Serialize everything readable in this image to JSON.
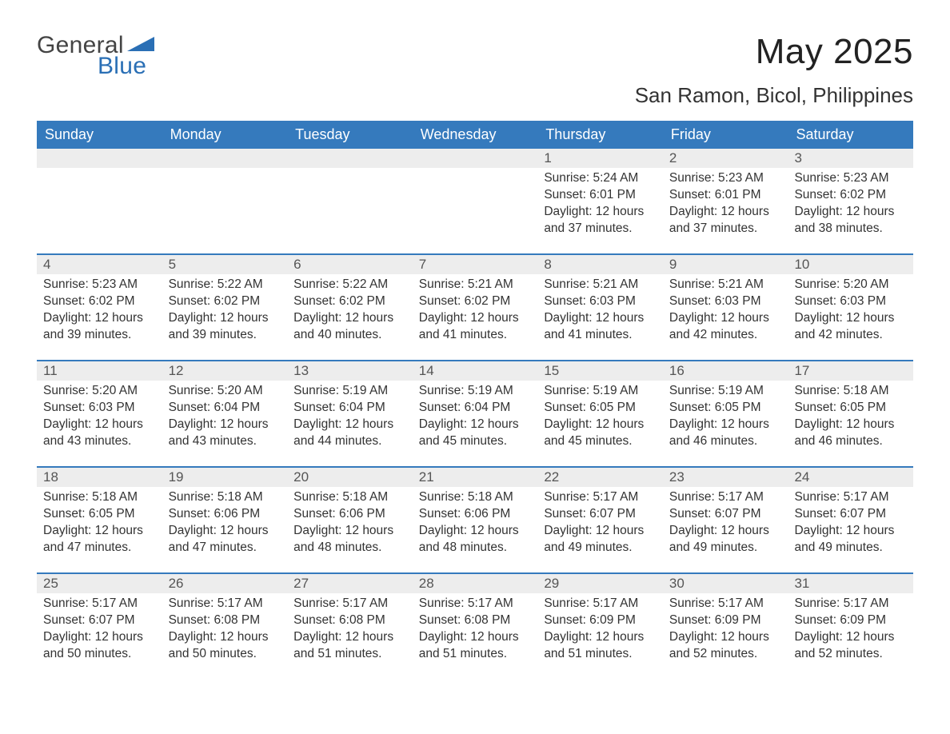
{
  "logo": {
    "word1": "General",
    "word2": "Blue",
    "word1_color": "#444444",
    "word2_color": "#2a6fb5"
  },
  "title": "May 2025",
  "location": "San Ramon, Bicol, Philippines",
  "colors": {
    "header_bg": "#357abd",
    "header_text": "#ffffff",
    "daynum_bg": "#ededed",
    "daynum_text": "#555555",
    "row_divider": "#357abd",
    "body_text": "#333333",
    "background": "#ffffff"
  },
  "typography": {
    "title_fontsize": 44,
    "location_fontsize": 26,
    "header_fontsize": 18,
    "daynum_fontsize": 17,
    "body_fontsize": 15.5,
    "font_family": "Arial"
  },
  "layout": {
    "columns": 7,
    "rows": 5,
    "cell_min_height": 131
  },
  "weekdays": [
    "Sunday",
    "Monday",
    "Tuesday",
    "Wednesday",
    "Thursday",
    "Friday",
    "Saturday"
  ],
  "weeks": [
    [
      null,
      null,
      null,
      null,
      {
        "day": "1",
        "sunrise": "5:24 AM",
        "sunset": "6:01 PM",
        "daylight": "12 hours and 37 minutes."
      },
      {
        "day": "2",
        "sunrise": "5:23 AM",
        "sunset": "6:01 PM",
        "daylight": "12 hours and 37 minutes."
      },
      {
        "day": "3",
        "sunrise": "5:23 AM",
        "sunset": "6:02 PM",
        "daylight": "12 hours and 38 minutes."
      }
    ],
    [
      {
        "day": "4",
        "sunrise": "5:23 AM",
        "sunset": "6:02 PM",
        "daylight": "12 hours and 39 minutes."
      },
      {
        "day": "5",
        "sunrise": "5:22 AM",
        "sunset": "6:02 PM",
        "daylight": "12 hours and 39 minutes."
      },
      {
        "day": "6",
        "sunrise": "5:22 AM",
        "sunset": "6:02 PM",
        "daylight": "12 hours and 40 minutes."
      },
      {
        "day": "7",
        "sunrise": "5:21 AM",
        "sunset": "6:02 PM",
        "daylight": "12 hours and 41 minutes."
      },
      {
        "day": "8",
        "sunrise": "5:21 AM",
        "sunset": "6:03 PM",
        "daylight": "12 hours and 41 minutes."
      },
      {
        "day": "9",
        "sunrise": "5:21 AM",
        "sunset": "6:03 PM",
        "daylight": "12 hours and 42 minutes."
      },
      {
        "day": "10",
        "sunrise": "5:20 AM",
        "sunset": "6:03 PM",
        "daylight": "12 hours and 42 minutes."
      }
    ],
    [
      {
        "day": "11",
        "sunrise": "5:20 AM",
        "sunset": "6:03 PM",
        "daylight": "12 hours and 43 minutes."
      },
      {
        "day": "12",
        "sunrise": "5:20 AM",
        "sunset": "6:04 PM",
        "daylight": "12 hours and 43 minutes."
      },
      {
        "day": "13",
        "sunrise": "5:19 AM",
        "sunset": "6:04 PM",
        "daylight": "12 hours and 44 minutes."
      },
      {
        "day": "14",
        "sunrise": "5:19 AM",
        "sunset": "6:04 PM",
        "daylight": "12 hours and 45 minutes."
      },
      {
        "day": "15",
        "sunrise": "5:19 AM",
        "sunset": "6:05 PM",
        "daylight": "12 hours and 45 minutes."
      },
      {
        "day": "16",
        "sunrise": "5:19 AM",
        "sunset": "6:05 PM",
        "daylight": "12 hours and 46 minutes."
      },
      {
        "day": "17",
        "sunrise": "5:18 AM",
        "sunset": "6:05 PM",
        "daylight": "12 hours and 46 minutes."
      }
    ],
    [
      {
        "day": "18",
        "sunrise": "5:18 AM",
        "sunset": "6:05 PM",
        "daylight": "12 hours and 47 minutes."
      },
      {
        "day": "19",
        "sunrise": "5:18 AM",
        "sunset": "6:06 PM",
        "daylight": "12 hours and 47 minutes."
      },
      {
        "day": "20",
        "sunrise": "5:18 AM",
        "sunset": "6:06 PM",
        "daylight": "12 hours and 48 minutes."
      },
      {
        "day": "21",
        "sunrise": "5:18 AM",
        "sunset": "6:06 PM",
        "daylight": "12 hours and 48 minutes."
      },
      {
        "day": "22",
        "sunrise": "5:17 AM",
        "sunset": "6:07 PM",
        "daylight": "12 hours and 49 minutes."
      },
      {
        "day": "23",
        "sunrise": "5:17 AM",
        "sunset": "6:07 PM",
        "daylight": "12 hours and 49 minutes."
      },
      {
        "day": "24",
        "sunrise": "5:17 AM",
        "sunset": "6:07 PM",
        "daylight": "12 hours and 49 minutes."
      }
    ],
    [
      {
        "day": "25",
        "sunrise": "5:17 AM",
        "sunset": "6:07 PM",
        "daylight": "12 hours and 50 minutes."
      },
      {
        "day": "26",
        "sunrise": "5:17 AM",
        "sunset": "6:08 PM",
        "daylight": "12 hours and 50 minutes."
      },
      {
        "day": "27",
        "sunrise": "5:17 AM",
        "sunset": "6:08 PM",
        "daylight": "12 hours and 51 minutes."
      },
      {
        "day": "28",
        "sunrise": "5:17 AM",
        "sunset": "6:08 PM",
        "daylight": "12 hours and 51 minutes."
      },
      {
        "day": "29",
        "sunrise": "5:17 AM",
        "sunset": "6:09 PM",
        "daylight": "12 hours and 51 minutes."
      },
      {
        "day": "30",
        "sunrise": "5:17 AM",
        "sunset": "6:09 PM",
        "daylight": "12 hours and 52 minutes."
      },
      {
        "day": "31",
        "sunrise": "5:17 AM",
        "sunset": "6:09 PM",
        "daylight": "12 hours and 52 minutes."
      }
    ]
  ],
  "labels": {
    "sunrise": "Sunrise:",
    "sunset": "Sunset:",
    "daylight": "Daylight:"
  }
}
